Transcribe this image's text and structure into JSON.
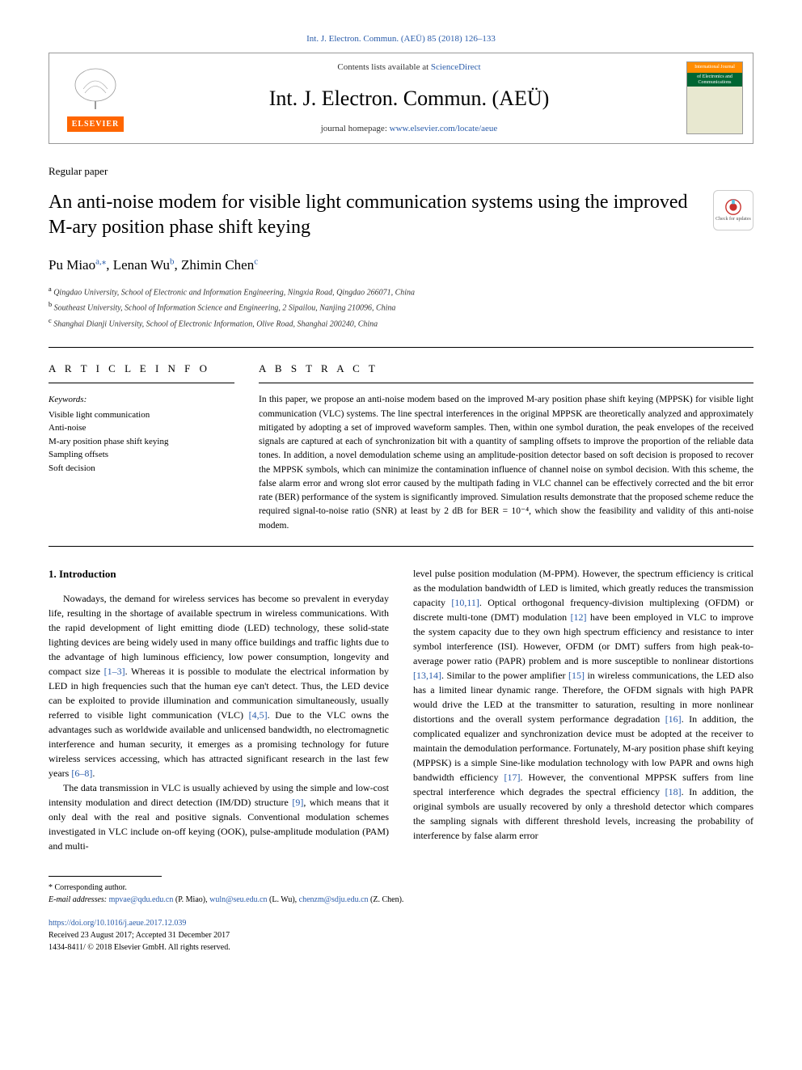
{
  "journal_ref_top": "Int. J. Electron. Commun. (AEÜ) 85 (2018) 126–133",
  "header": {
    "contents_prefix": "Contents lists available at ",
    "contents_link": "ScienceDirect",
    "journal_name": "Int. J. Electron. Commun. (AEÜ)",
    "homepage_prefix": "journal homepage: ",
    "homepage_link": "www.elsevier.com/locate/aeue",
    "publisher": "ELSEVIER",
    "cover_top": "International Journal",
    "cover_mid": "of Electronics and Communications"
  },
  "paper_type": "Regular paper",
  "title": "An anti-noise modem for visible light communication systems using the improved M-ary position phase shift keying",
  "check_updates": "Check for updates",
  "authors_html": "Pu Miao<sup>a,*</sup>, Lenan Wu<sup>b</sup>, Zhimin Chen<sup>c</sup>",
  "authors": [
    {
      "name": "Pu Miao",
      "aff": "a",
      "corr": true
    },
    {
      "name": "Lenan Wu",
      "aff": "b",
      "corr": false
    },
    {
      "name": "Zhimin Chen",
      "aff": "c",
      "corr": false
    }
  ],
  "affiliations": [
    {
      "sup": "a",
      "text": "Qingdao University, School of Electronic and Information Engineering, Ningxia Road, Qingdao 266071, China"
    },
    {
      "sup": "b",
      "text": "Southeast University, School of Information Science and Engineering, 2 Sipailou, Nanjing 210096, China"
    },
    {
      "sup": "c",
      "text": "Shanghai Dianji University, School of Electronic Information, Olive Road, Shanghai 200240, China"
    }
  ],
  "article_info_heading": "A R T I C L E  I N F O",
  "keywords_label": "Keywords:",
  "keywords": [
    "Visible light communication",
    "Anti-noise",
    "M-ary position phase shift keying",
    "Sampling offsets",
    "Soft decision"
  ],
  "abstract_heading": "A B S T R A C T",
  "abstract_text": "In this paper, we propose an anti-noise modem based on the improved M-ary position phase shift keying (MPPSK) for visible light communication (VLC) systems. The line spectral interferences in the original MPPSK are theoretically analyzed and approximately mitigated by adopting a set of improved waveform samples. Then, within one symbol duration, the peak envelopes of the received signals are captured at each of synchronization bit with a quantity of sampling offsets to improve the proportion of the reliable data tones. In addition, a novel demodulation scheme using an amplitude-position detector based on soft decision is proposed to recover the MPPSK symbols, which can minimize the contamination influence of channel noise on symbol decision. With this scheme, the false alarm error and wrong slot error caused by the multipath fading in VLC channel can be effectively corrected and the bit error rate (BER) performance of the system is significantly improved. Simulation results demonstrate that the proposed scheme reduce the required signal-to-noise ratio (SNR) at least by 2 dB for BER = 10⁻⁴, which show the feasibility and validity of this anti-noise modem.",
  "intro_heading": "1. Introduction",
  "intro_col1_p1": "Nowadays, the demand for wireless services has become so prevalent in everyday life, resulting in the shortage of available spectrum in wireless communications. With the rapid development of light emitting diode (LED) technology, these solid-state lighting devices are being widely used in many office buildings and traffic lights due to the advantage of high luminous efficiency, low power consumption, longevity and compact size [1–3]. Whereas it is possible to modulate the electrical information by LED in high frequencies such that the human eye can't detect. Thus, the LED device can be exploited to provide illumination and communication simultaneously, usually referred to visible light communication (VLC) [4,5]. Due to the VLC owns the advantages such as worldwide available and unlicensed bandwidth, no electromagnetic interference and human security, it emerges as a promising technology for future wireless services accessing, which has attracted significant research in the last few years [6–8].",
  "intro_col1_p2": "The data transmission in VLC is usually achieved by using the simple and low-cost intensity modulation and direct detection (IM/DD) structure [9], which means that it only deal with the real and positive signals. Conventional modulation schemes investigated in VLC include on-off keying (OOK), pulse-amplitude modulation (PAM) and multi-",
  "intro_col2_p1": "level pulse position modulation (M-PPM). However, the spectrum efficiency is critical as the modulation bandwidth of LED is limited, which greatly reduces the transmission capacity [10,11]. Optical orthogonal frequency-division multiplexing (OFDM) or discrete multi-tone (DMT) modulation [12] have been employed in VLC to improve the system capacity due to they own high spectrum efficiency and resistance to inter symbol interference (ISI). However, OFDM (or DMT) suffers from high peak-to-average power ratio (PAPR) problem and is more susceptible to nonlinear distortions [13,14]. Similar to the power amplifier [15] in wireless communications, the LED also has a limited linear dynamic range. Therefore, the OFDM signals with high PAPR would drive the LED at the transmitter to saturation, resulting in more nonlinear distortions and the overall system performance degradation [16]. In addition, the complicated equalizer and synchronization device must be adopted at the receiver to maintain the demodulation performance. Fortunately, M-ary position phase shift keying (MPPSK) is a simple Sine-like modulation technology with low PAPR and owns high bandwidth efficiency [17]. However, the conventional MPPSK suffers from line spectral interference which degrades the spectral efficiency [18]. In addition, the original symbols are usually recovered by only a threshold detector which compares the sampling signals with different threshold levels, increasing the probability of interference by false alarm error",
  "footnotes": {
    "corr": "* Corresponding author.",
    "email_label": "E-mail addresses: ",
    "emails": [
      {
        "addr": "mpvae@qdu.edu.cn",
        "who": "(P. Miao)"
      },
      {
        "addr": "wuln@seu.edu.cn",
        "who": "(L. Wu)"
      },
      {
        "addr": "chenzm@sdju.edu.cn",
        "who": "(Z. Chen)"
      }
    ]
  },
  "doi": {
    "link": "https://doi.org/10.1016/j.aeue.2017.12.039",
    "received": "Received 23 August 2017; Accepted 31 December 2017",
    "issn": "1434-8411/ © 2018 Elsevier GmbH. All rights reserved."
  },
  "colors": {
    "link": "#2a5caa",
    "elsevier_orange": "#ff6600",
    "cover_green": "#006633",
    "cover_orange": "#ff8c00",
    "text": "#000000",
    "border": "#999999"
  }
}
